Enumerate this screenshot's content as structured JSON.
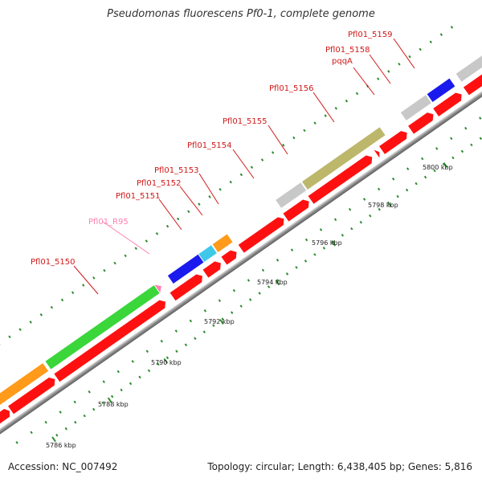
{
  "title": "Pseudomonas fluorescens Pf0-1, complete genome",
  "accession": "Accession: NC_007492",
  "summary": "Topology: circular; Length: 6,438,405 bp; Genes: 5,816",
  "scale_labels": [
    "5786 kbp",
    "5788 kbp",
    "5790 kbp",
    "5792 kbp",
    "5794 kbp",
    "5796 kbp",
    "5798 kbp",
    "5800 kbp"
  ],
  "gene_labels": [
    "Pfl01_R95",
    "Pfl01_5150",
    "Pfl01_5151",
    "Pfl01_5152",
    "Pfl01_5153",
    "Pfl01_5154",
    "Pfl01_5155",
    "Pfl01_5156",
    "pqqA",
    "Pfl01_5158",
    "Pfl01_5159"
  ],
  "colors": {
    "cds": "#ff1010",
    "label_red": "#d01818",
    "label_pink": "#ff80b0",
    "backbone": "#9a9a9a",
    "tick": "#2e8b2e",
    "green": "#3ad63a",
    "orange": "#ff9a1a",
    "blue": "#1a1aee",
    "cyan": "#40c8e8",
    "grey": "#c8c8c8",
    "olive": "#bdb76b",
    "magenta": "#d0208a",
    "steelblue": "#5a8ab8"
  }
}
